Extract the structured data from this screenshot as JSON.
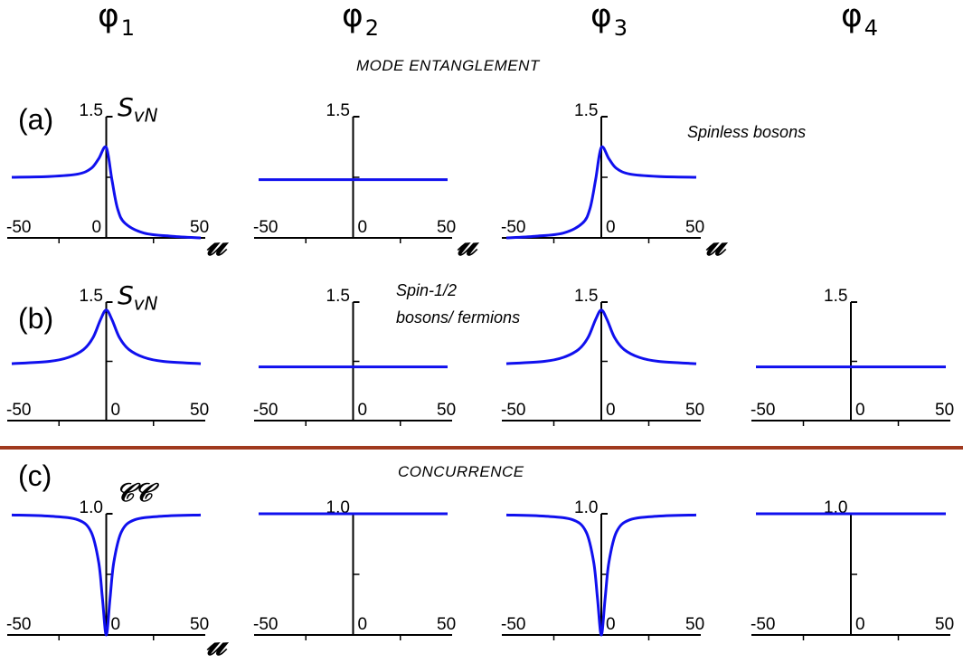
{
  "column_headers": [
    {
      "symbol": "φ",
      "sub": "1"
    },
    {
      "symbol": "φ",
      "sub": "2"
    },
    {
      "symbol": "φ",
      "sub": "3"
    },
    {
      "symbol": "φ",
      "sub": "4"
    }
  ],
  "sections": {
    "top_title": "MODE ENTANGLEMENT",
    "bottom_title": "CONCURRENCE"
  },
  "rows": {
    "a": {
      "label": "(a)",
      "note": "Spinless bosons",
      "ylabel_main": "S",
      "ylabel_sub": "vN"
    },
    "b": {
      "label": "(b)",
      "note_line1": "Spin-1/2",
      "note_line2": "bosons/ fermions",
      "ylabel_main": "S",
      "ylabel_sub": "vN"
    },
    "c": {
      "label": "(c)",
      "ylabel": "𝒞𝒞"
    }
  },
  "x_axis_symbol": "𝓊",
  "colors": {
    "curve": "#1010ee",
    "divider": "#a0391e",
    "axis": "#000000"
  },
  "chart_data": [
    {
      "type": "line",
      "row": "a",
      "column": "φ1",
      "xlim": [
        -50,
        50
      ],
      "ylim": [
        0,
        1.5
      ],
      "ytick_label": "1.5",
      "x_tick_labels": [
        "-50",
        "0",
        "50"
      ],
      "series": [
        {
          "x": [
            -50,
            -30,
            -15,
            -8,
            -4,
            0,
            3,
            6,
            10,
            20,
            35,
            50
          ],
          "y": [
            0.75,
            0.76,
            0.79,
            0.86,
            0.98,
            1.12,
            0.72,
            0.36,
            0.18,
            0.06,
            0.02,
            0.0
          ]
        }
      ]
    },
    {
      "type": "line",
      "row": "a",
      "column": "φ2",
      "xlim": [
        -50,
        50
      ],
      "ylim": [
        0,
        1.5
      ],
      "ytick_label": "1.5",
      "x_tick_labels": [
        "-50",
        "0",
        "50"
      ],
      "series": [
        {
          "x": [
            -50,
            50
          ],
          "y": [
            0.72,
            0.72
          ]
        }
      ]
    },
    {
      "type": "line",
      "row": "a",
      "column": "φ3",
      "xlim": [
        -50,
        50
      ],
      "ylim": [
        0,
        1.5
      ],
      "ytick_label": "1.5",
      "x_tick_labels": [
        "-50",
        "0",
        "50"
      ],
      "series": [
        {
          "x": [
            -50,
            -35,
            -20,
            -10,
            -6,
            -3,
            0,
            4,
            8,
            15,
            30,
            50
          ],
          "y": [
            0.0,
            0.02,
            0.06,
            0.18,
            0.36,
            0.72,
            1.12,
            0.98,
            0.86,
            0.79,
            0.76,
            0.75
          ]
        }
      ]
    },
    {
      "type": "line",
      "row": "b",
      "column": "φ1",
      "xlim": [
        -50,
        50
      ],
      "ylim": [
        0,
        1.5
      ],
      "ytick_label": "1.5",
      "x_tick_labels": [
        "-50",
        "0",
        "50"
      ],
      "series": [
        {
          "x": [
            -50,
            -30,
            -20,
            -12,
            -7,
            -3,
            0,
            3,
            7,
            12,
            20,
            30,
            50
          ],
          "y": [
            0.72,
            0.75,
            0.8,
            0.9,
            1.05,
            1.28,
            1.4,
            1.28,
            1.05,
            0.9,
            0.8,
            0.75,
            0.72
          ]
        }
      ]
    },
    {
      "type": "line",
      "row": "b",
      "column": "φ2",
      "xlim": [
        -50,
        50
      ],
      "ylim": [
        0,
        1.5
      ],
      "ytick_label": "1.5",
      "x_tick_labels": [
        "-50",
        "0",
        "50"
      ],
      "series": [
        {
          "x": [
            -50,
            50
          ],
          "y": [
            0.68,
            0.68
          ]
        }
      ]
    },
    {
      "type": "line",
      "row": "b",
      "column": "φ3",
      "xlim": [
        -50,
        50
      ],
      "ylim": [
        0,
        1.5
      ],
      "ytick_label": "1.5",
      "x_tick_labels": [
        "-50",
        "0",
        "50"
      ],
      "series": [
        {
          "x": [
            -50,
            -30,
            -20,
            -12,
            -7,
            -3,
            0,
            3,
            7,
            12,
            20,
            30,
            50
          ],
          "y": [
            0.72,
            0.75,
            0.8,
            0.9,
            1.05,
            1.28,
            1.4,
            1.28,
            1.05,
            0.9,
            0.8,
            0.75,
            0.72
          ]
        }
      ]
    },
    {
      "type": "line",
      "row": "b",
      "column": "φ4",
      "xlim": [
        -50,
        50
      ],
      "ylim": [
        0,
        1.5
      ],
      "ytick_label": "1.5",
      "x_tick_labels": [
        "-50",
        "0",
        "50"
      ],
      "series": [
        {
          "x": [
            -50,
            50
          ],
          "y": [
            0.68,
            0.68
          ]
        }
      ]
    },
    {
      "type": "line",
      "row": "c",
      "column": "φ1",
      "xlim": [
        -50,
        50
      ],
      "ylim": [
        0,
        1.0
      ],
      "ytick_label": "1.0",
      "x_tick_labels": [
        "-50",
        "0",
        "50"
      ],
      "series": [
        {
          "x": [
            -50,
            -30,
            -15,
            -8,
            -4,
            -2,
            0,
            2,
            4,
            8,
            15,
            30,
            50
          ],
          "y": [
            0.99,
            0.98,
            0.95,
            0.85,
            0.6,
            0.3,
            0.0,
            0.3,
            0.6,
            0.85,
            0.95,
            0.98,
            0.99
          ]
        }
      ]
    },
    {
      "type": "line",
      "row": "c",
      "column": "φ2",
      "xlim": [
        -50,
        50
      ],
      "ylim": [
        0,
        1.0
      ],
      "ytick_label": "1.0",
      "x_tick_labels": [
        "-50",
        "0",
        "50"
      ],
      "series": [
        {
          "x": [
            -50,
            50
          ],
          "y": [
            1.0,
            1.0
          ]
        }
      ]
    },
    {
      "type": "line",
      "row": "c",
      "column": "φ3",
      "xlim": [
        -50,
        50
      ],
      "ylim": [
        0,
        1.0
      ],
      "ytick_label": "1.0",
      "x_tick_labels": [
        "-50",
        "0",
        "50"
      ],
      "series": [
        {
          "x": [
            -50,
            -30,
            -15,
            -8,
            -4,
            -2,
            0,
            2,
            4,
            8,
            15,
            30,
            50
          ],
          "y": [
            0.99,
            0.98,
            0.95,
            0.85,
            0.6,
            0.3,
            0.0,
            0.3,
            0.6,
            0.85,
            0.95,
            0.98,
            0.99
          ]
        }
      ]
    },
    {
      "type": "line",
      "row": "c",
      "column": "φ4",
      "xlim": [
        -50,
        50
      ],
      "ylim": [
        0,
        1.0
      ],
      "ytick_label": "1.0",
      "x_tick_labels": [
        "-50",
        "0",
        "50"
      ],
      "series": [
        {
          "x": [
            -50,
            50
          ],
          "y": [
            1.0,
            1.0
          ]
        }
      ]
    }
  ]
}
